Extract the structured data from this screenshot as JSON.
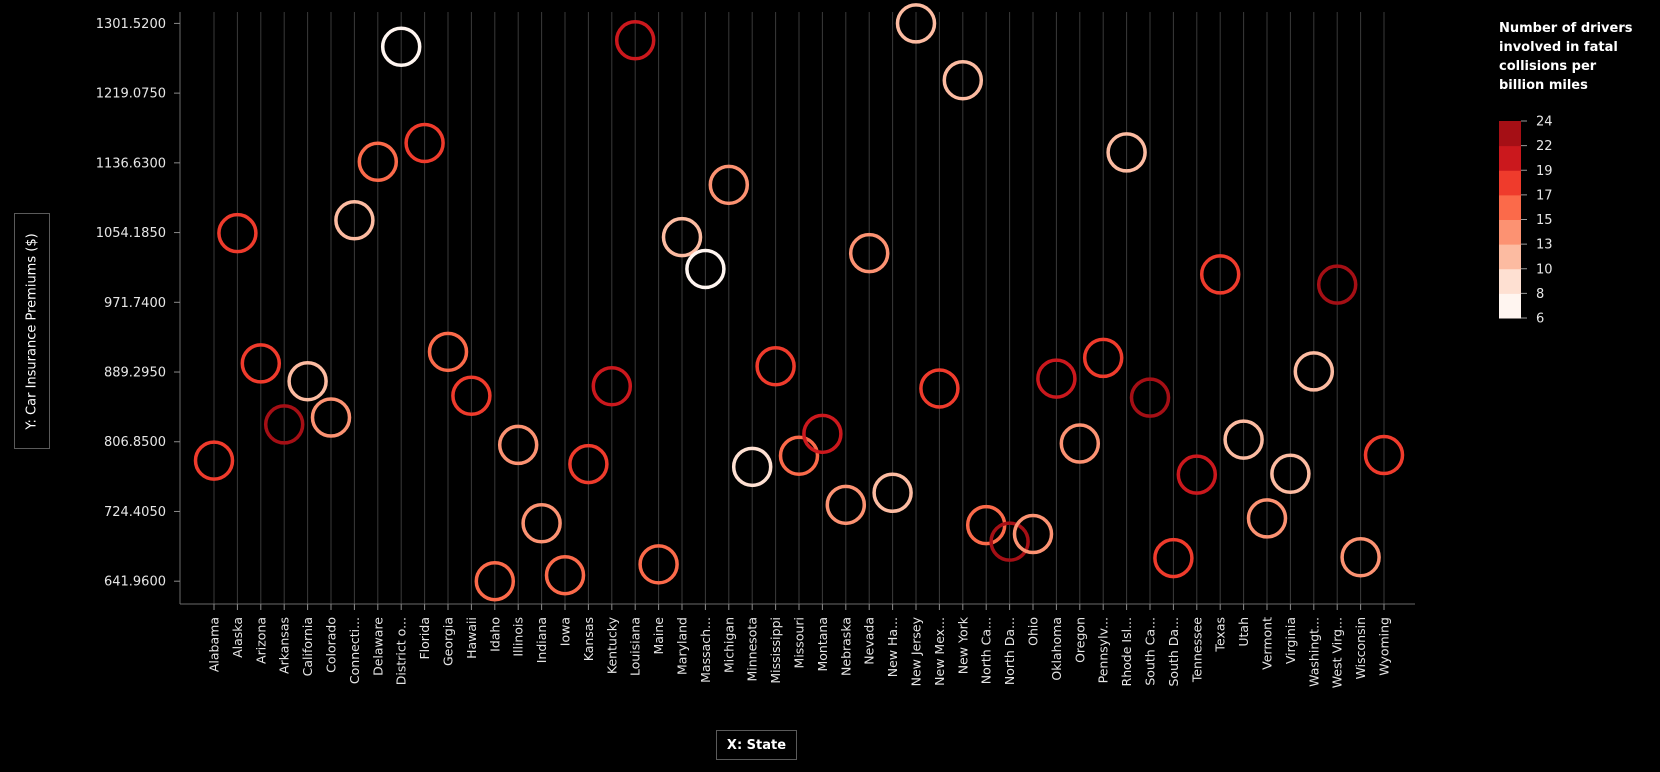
{
  "chart_data": {
    "type": "scatter",
    "xlabel": "X: State",
    "ylabel": "Y: Car Insurance Premiums ($)",
    "legend_title": "Number of drivers involved in fatal collisions per billion miles",
    "legend_placement": "top-right",
    "y_ticks": [
      "1301.5200",
      "1219.0750",
      "1136.6300",
      "1054.1850",
      "971.7400",
      "889.2950",
      "806.8500",
      "724.4050",
      "641.9600"
    ],
    "ylim": [
      615,
      1315
    ],
    "color_scale": {
      "min": 6,
      "max": 24,
      "ticks": [
        "24",
        "22",
        "19",
        "17",
        "15",
        "13",
        "10",
        "8",
        "6"
      ],
      "colors": [
        "#fff5f0",
        "#fee0d2",
        "#fcbba1",
        "#fc9272",
        "#fb6a4a",
        "#ef3b2c",
        "#cb181d",
        "#a50f15"
      ]
    },
    "grid": true,
    "categories": [
      "Alabama",
      "Alaska",
      "Arizona",
      "Arkansas",
      "California",
      "Colorado",
      "Connecti...",
      "Delaware",
      "District o...",
      "Florida",
      "Georgia",
      "Hawaii",
      "Idaho",
      "Illinois",
      "Indiana",
      "Iowa",
      "Kansas",
      "Kentucky",
      "Louisiana",
      "Maine",
      "Maryland",
      "Massach...",
      "Michigan",
      "Minnesota",
      "Mississippi",
      "Missouri",
      "Montana",
      "Nebraska",
      "Nevada",
      "New Ha...",
      "New Jersey",
      "New Mex...",
      "New York",
      "North Ca...",
      "North Da...",
      "Ohio",
      "Oklahoma",
      "Oregon",
      "Pennsylv...",
      "Rhode Isl...",
      "South Ca...",
      "South Da...",
      "Tennessee",
      "Texas",
      "Utah",
      "Vermont",
      "Virginia",
      "Washingt...",
      "West Virg...",
      "Wisconsin",
      "Wyoming"
    ],
    "y": [
      784.55,
      1053.48,
      899.47,
      827.34,
      878.41,
      835.5,
      1068.73,
      1137.87,
      1273.89,
      1160.13,
      913.15,
      861.18,
      641.96,
      803.11,
      710.46,
      649.06,
      780.45,
      872.51,
      1281.55,
      661.88,
      1048.78,
      1011.14,
      1110.61,
      777.18,
      896.07,
      790.32,
      816.21,
      732.28,
      1029.87,
      746.54,
      1301.52,
      869.85,
      1234.31,
      708.24,
      688.75,
      697.73,
      881.51,
      804.71,
      905.99,
      1148.99,
      858.97,
      669.31,
      767.91,
      1004.75,
      809.38,
      716.2,
      768.95,
      890.03,
      992.61,
      670.31,
      791.14
    ],
    "color_values": [
      18.8,
      18.1,
      18.6,
      22.4,
      12.0,
      13.6,
      10.8,
      16.2,
      5.9,
      17.9,
      15.6,
      17.5,
      15.3,
      12.8,
      14.5,
      15.7,
      17.8,
      21.4,
      20.5,
      15.1,
      12.5,
      8.2,
      14.1,
      9.6,
      17.6,
      16.1,
      21.4,
      14.9,
      14.7,
      11.6,
      11.2,
      18.4,
      12.3,
      16.8,
      23.9,
      14.1,
      19.9,
      12.8,
      18.2,
      11.1,
      23.9,
      19.4,
      19.5,
      19.4,
      11.3,
      13.6,
      12.7,
      10.6,
      23.8,
      13.8,
      17.4
    ]
  }
}
